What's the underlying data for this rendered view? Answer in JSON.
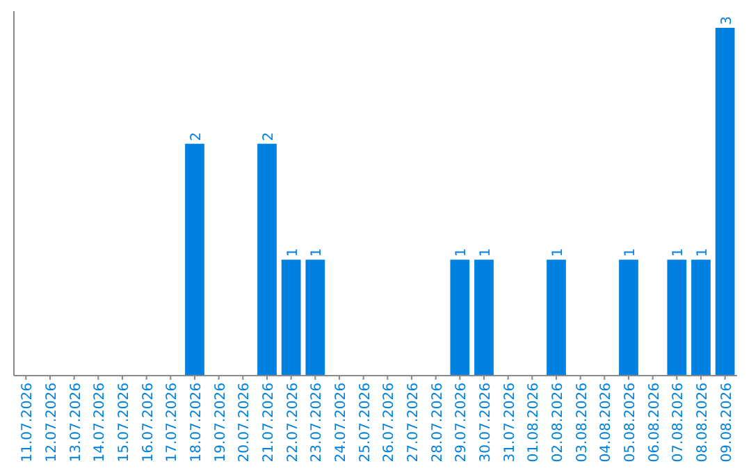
{
  "chart_data": {
    "type": "bar",
    "categories": [
      "11.07.2026",
      "12.07.2026",
      "13.07.2026",
      "14.07.2026",
      "15.07.2026",
      "16.07.2026",
      "17.07.2026",
      "18.07.2026",
      "19.07.2026",
      "20.07.2026",
      "21.07.2026",
      "22.07.2026",
      "23.07.2026",
      "24.07.2026",
      "25.07.2026",
      "26.07.2026",
      "27.07.2026",
      "28.07.2026",
      "29.07.2026",
      "30.07.2026",
      "31.07.2026",
      "01.08.2026",
      "02.08.2026",
      "03.08.2026",
      "04.08.2026",
      "05.08.2026",
      "06.08.2026",
      "07.08.2026",
      "08.08.2026",
      "09.08.2026"
    ],
    "values": [
      0,
      0,
      0,
      0,
      0,
      0,
      0,
      2,
      0,
      0,
      2,
      1,
      1,
      0,
      0,
      0,
      0,
      0,
      1,
      1,
      0,
      0,
      1,
      0,
      0,
      1,
      0,
      1,
      1,
      3
    ],
    "value_labels": [
      null,
      null,
      null,
      null,
      null,
      null,
      null,
      "2",
      null,
      null,
      "2",
      "1",
      "1",
      null,
      null,
      null,
      null,
      null,
      "1",
      "1",
      null,
      null,
      "1",
      null,
      null,
      "1",
      null,
      "1",
      "1",
      "3"
    ],
    "color": "#0080e0"
  }
}
